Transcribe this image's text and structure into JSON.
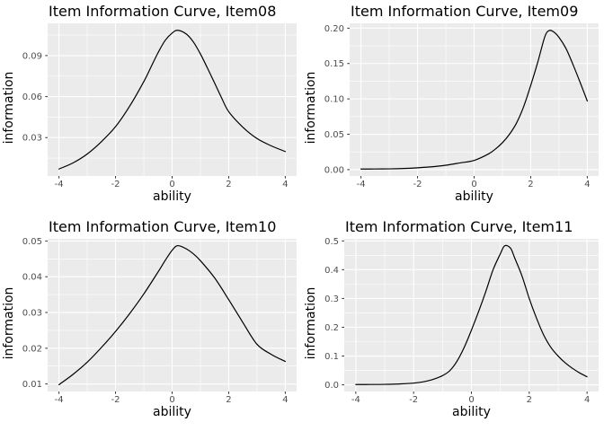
{
  "figure": {
    "background": "#FFFFFF",
    "panel_background": "#EBEBEB",
    "gridline_color": "#FFFFFF",
    "curve_color": "#000000",
    "tick_mark_color": "#333333",
    "tick_label_color": "#4D4D4D",
    "text_color": "#000000"
  },
  "chart_data": [
    {
      "type": "line",
      "title": "Item Information Curve, Item08",
      "xlabel": "ability",
      "ylabel": "information",
      "xlim": [
        -4.4,
        4.4
      ],
      "ylim": [
        0.0019,
        0.1136
      ],
      "x_ticks": [
        -4,
        -2,
        0,
        2,
        4
      ],
      "x_tick_labels": [
        "-4",
        "-2",
        "0",
        "2",
        "4"
      ],
      "y_ticks": [
        0.03,
        0.06,
        0.09
      ],
      "y_tick_labels": [
        "0.03",
        "0.06",
        "0.09"
      ],
      "grid": true,
      "legend": "none",
      "series": [
        {
          "name": "information",
          "points": [
            [
              -4,
              0.007
            ],
            [
              -3.5,
              0.0115
            ],
            [
              -3,
              0.018
            ],
            [
              -2.5,
              0.027
            ],
            [
              -2,
              0.038
            ],
            [
              -1.5,
              0.053
            ],
            [
              -1,
              0.071
            ],
            [
              -0.75,
              0.0815
            ],
            [
              -0.5,
              0.092
            ],
            [
              -0.25,
              0.101
            ],
            [
              0,
              0.1065
            ],
            [
              0.2,
              0.1085
            ],
            [
              0.5,
              0.1058
            ],
            [
              0.75,
              0.1
            ],
            [
              1,
              0.0912
            ],
            [
              1.25,
              0.0808
            ],
            [
              1.5,
              0.07
            ],
            [
              1.75,
              0.059
            ],
            [
              2,
              0.049
            ],
            [
              2.5,
              0.0376
            ],
            [
              3,
              0.0293
            ],
            [
              3.5,
              0.024
            ],
            [
              4,
              0.0198
            ]
          ]
        }
      ]
    },
    {
      "type": "line",
      "title": "Item Information Curve, Item09",
      "xlabel": "ability",
      "ylabel": "information",
      "xlim": [
        -4.4,
        4.4
      ],
      "ylim": [
        -0.009,
        0.2068
      ],
      "x_ticks": [
        -4,
        -2,
        0,
        2,
        4
      ],
      "x_tick_labels": [
        "-4",
        "-2",
        "0",
        "2",
        "4"
      ],
      "y_ticks": [
        0.0,
        0.05,
        0.1,
        0.15,
        0.2
      ],
      "y_tick_labels": [
        "0.00",
        "0.05",
        "0.10",
        "0.15",
        "0.20"
      ],
      "grid": true,
      "legend": "none",
      "series": [
        {
          "name": "information",
          "points": [
            [
              -4,
              0.0008
            ],
            [
              -3.5,
              0.0009
            ],
            [
              -3,
              0.0011
            ],
            [
              -2.5,
              0.0016
            ],
            [
              -2,
              0.0026
            ],
            [
              -1.5,
              0.004
            ],
            [
              -1,
              0.0062
            ],
            [
              -0.5,
              0.0095
            ],
            [
              0,
              0.013
            ],
            [
              0.5,
              0.022
            ],
            [
              0.75,
              0.029
            ],
            [
              1,
              0.038
            ],
            [
              1.25,
              0.05
            ],
            [
              1.5,
              0.066
            ],
            [
              1.75,
              0.089
            ],
            [
              2,
              0.119
            ],
            [
              2.25,
              0.152
            ],
            [
              2.5,
              0.188
            ],
            [
              2.65,
              0.1965
            ],
            [
              2.8,
              0.195
            ],
            [
              3,
              0.187
            ],
            [
              3.25,
              0.171
            ],
            [
              3.5,
              0.148
            ],
            [
              3.75,
              0.123
            ],
            [
              4,
              0.097
            ]
          ]
        }
      ]
    },
    {
      "type": "line",
      "title": "Item Information Curve, Item10",
      "xlabel": "ability",
      "ylabel": "information",
      "xlim": [
        -4.4,
        4.4
      ],
      "ylim": [
        0.0079,
        0.0506
      ],
      "x_ticks": [
        -4,
        -2,
        0,
        2,
        4
      ],
      "x_tick_labels": [
        "-4",
        "-2",
        "0",
        "2",
        "4"
      ],
      "y_ticks": [
        0.01,
        0.02,
        0.03,
        0.04,
        0.05
      ],
      "y_tick_labels": [
        "0.01",
        "0.02",
        "0.03",
        "0.04",
        "0.05"
      ],
      "grid": true,
      "legend": "none",
      "series": [
        {
          "name": "information",
          "points": [
            [
              -4,
              0.0098
            ],
            [
              -3.5,
              0.0127
            ],
            [
              -3,
              0.0161
            ],
            [
              -2.5,
              0.0202
            ],
            [
              -2,
              0.0247
            ],
            [
              -1.5,
              0.0297
            ],
            [
              -1,
              0.0352
            ],
            [
              -0.5,
              0.0413
            ],
            [
              -0.25,
              0.0445
            ],
            [
              0,
              0.0474
            ],
            [
              0.2,
              0.0487
            ],
            [
              0.5,
              0.0478
            ],
            [
              0.75,
              0.0464
            ],
            [
              1,
              0.0445
            ],
            [
              1.5,
              0.0397
            ],
            [
              2,
              0.0336
            ],
            [
              2.5,
              0.0272
            ],
            [
              3,
              0.0211
            ],
            [
              3.5,
              0.0183
            ],
            [
              4,
              0.0163
            ]
          ]
        }
      ]
    },
    {
      "type": "line",
      "title": "Item Information Curve, Item11",
      "xlabel": "ability",
      "ylabel": "information",
      "xlim": [
        -4.4,
        4.4
      ],
      "ylim": [
        -0.0231,
        0.5071
      ],
      "x_ticks": [
        -4,
        -2,
        0,
        2,
        4
      ],
      "x_tick_labels": [
        "-4",
        "-2",
        "0",
        "2",
        "4"
      ],
      "y_ticks": [
        0.0,
        0.1,
        0.2,
        0.3,
        0.4,
        0.5
      ],
      "y_tick_labels": [
        "0.0",
        "0.1",
        "0.2",
        "0.3",
        "0.4",
        "0.5"
      ],
      "grid": true,
      "legend": "none",
      "series": [
        {
          "name": "information",
          "points": [
            [
              -4,
              0.001
            ],
            [
              -3.5,
              0.0012
            ],
            [
              -3,
              0.0016
            ],
            [
              -2.5,
              0.003
            ],
            [
              -2,
              0.006
            ],
            [
              -1.75,
              0.009
            ],
            [
              -1.5,
              0.014
            ],
            [
              -1.25,
              0.0215
            ],
            [
              -1,
              0.032
            ],
            [
              -0.75,
              0.049
            ],
            [
              -0.5,
              0.082
            ],
            [
              -0.25,
              0.13
            ],
            [
              0,
              0.19
            ],
            [
              0.25,
              0.255
            ],
            [
              0.5,
              0.325
            ],
            [
              0.75,
              0.4
            ],
            [
              1,
              0.455
            ],
            [
              1.15,
              0.483
            ],
            [
              1.35,
              0.475
            ],
            [
              1.5,
              0.44
            ],
            [
              1.75,
              0.378
            ],
            [
              2,
              0.3
            ],
            [
              2.25,
              0.232
            ],
            [
              2.5,
              0.173
            ],
            [
              2.75,
              0.13
            ],
            [
              3,
              0.1
            ],
            [
              3.25,
              0.076
            ],
            [
              3.5,
              0.057
            ],
            [
              3.75,
              0.041
            ],
            [
              4,
              0.028
            ]
          ]
        }
      ]
    }
  ]
}
